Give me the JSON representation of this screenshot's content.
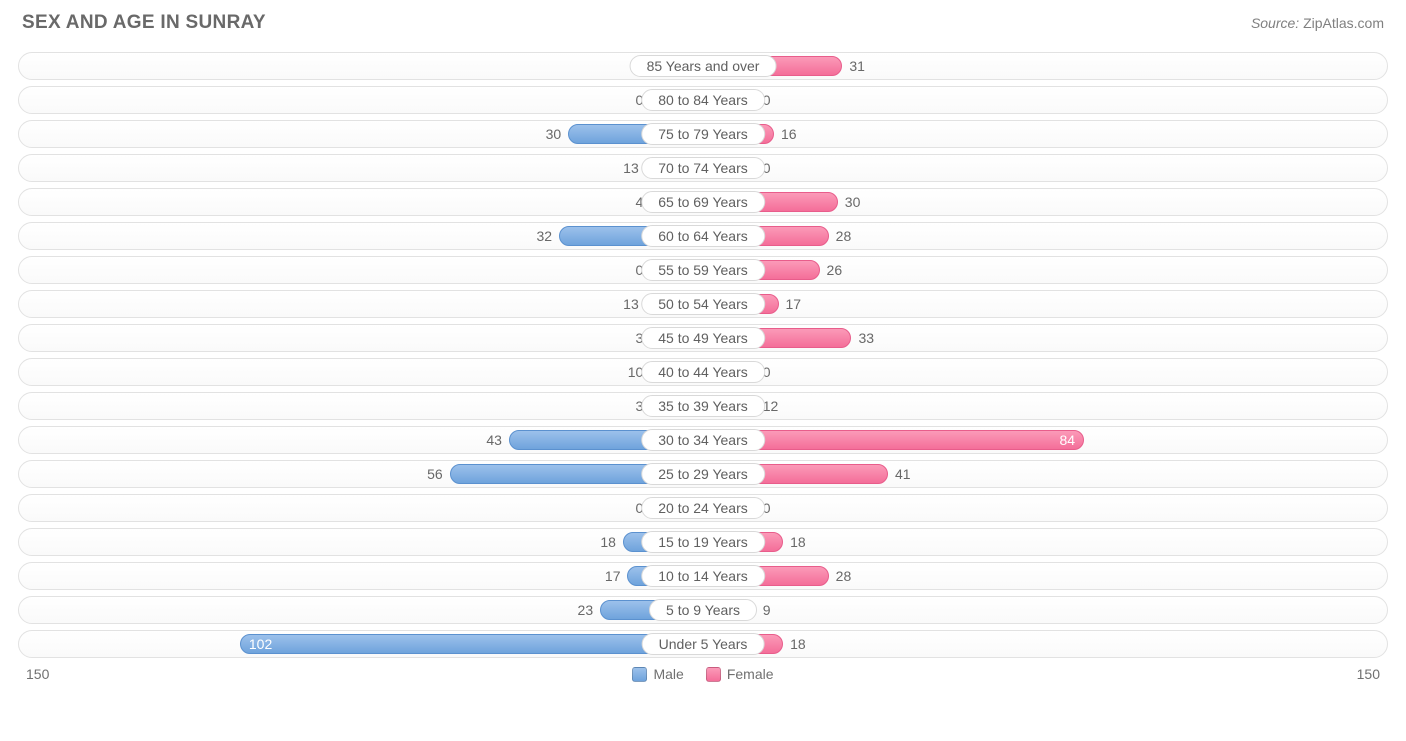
{
  "header": {
    "title": "SEX AND AGE IN SUNRAY",
    "source_label": "Source:",
    "source_value": "ZipAtlas.com"
  },
  "chart": {
    "type": "population-pyramid",
    "axis_max": 150,
    "axis_left_label": "150",
    "axis_right_label": "150",
    "min_bar_units": 12,
    "colors": {
      "male_fill_top": "#9cc1eb",
      "male_fill_bottom": "#6fa3dc",
      "male_border": "#5b91cf",
      "female_fill_top": "#fb9ab8",
      "female_fill_bottom": "#f46e99",
      "female_border": "#e85d8b",
      "row_border": "#e2e2e2",
      "text": "#686868",
      "title_text": "#696969",
      "background": "#ffffff"
    },
    "font": {
      "title_size_pt": 14,
      "label_size_pt": 10,
      "value_size_pt": 10
    },
    "legend": {
      "male": "Male",
      "female": "Female"
    },
    "rows": [
      {
        "label": "85 Years and over",
        "male": 0,
        "female": 31
      },
      {
        "label": "80 to 84 Years",
        "male": 0,
        "female": 0
      },
      {
        "label": "75 to 79 Years",
        "male": 30,
        "female": 16
      },
      {
        "label": "70 to 74 Years",
        "male": 13,
        "female": 0
      },
      {
        "label": "65 to 69 Years",
        "male": 4,
        "female": 30
      },
      {
        "label": "60 to 64 Years",
        "male": 32,
        "female": 28
      },
      {
        "label": "55 to 59 Years",
        "male": 0,
        "female": 26
      },
      {
        "label": "50 to 54 Years",
        "male": 13,
        "female": 17
      },
      {
        "label": "45 to 49 Years",
        "male": 3,
        "female": 33
      },
      {
        "label": "40 to 44 Years",
        "male": 10,
        "female": 0
      },
      {
        "label": "35 to 39 Years",
        "male": 3,
        "female": 12
      },
      {
        "label": "30 to 34 Years",
        "male": 43,
        "female": 84
      },
      {
        "label": "25 to 29 Years",
        "male": 56,
        "female": 41
      },
      {
        "label": "20 to 24 Years",
        "male": 0,
        "female": 0
      },
      {
        "label": "15 to 19 Years",
        "male": 18,
        "female": 18
      },
      {
        "label": "10 to 14 Years",
        "male": 17,
        "female": 28
      },
      {
        "label": "5 to 9 Years",
        "male": 23,
        "female": 9
      },
      {
        "label": "Under 5 Years",
        "male": 102,
        "female": 18
      }
    ]
  }
}
